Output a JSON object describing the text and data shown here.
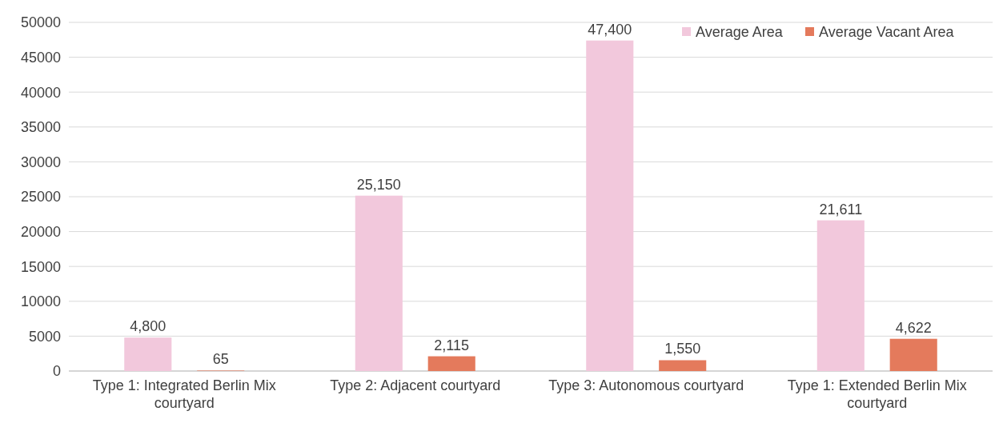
{
  "chart_data": {
    "type": "bar",
    "categories": [
      "Type 1: Integrated Berlin Mix courtyard",
      "Type 2: Adjacent courtyard",
      "Type 3: Autonomous courtyard",
      "Type 1: Extended Berlin Mix courtyard"
    ],
    "series": [
      {
        "name": "Average Area",
        "color": "#f2c8dc",
        "values": [
          4800,
          25150,
          47400,
          21611
        ],
        "value_labels": [
          "4,800",
          "25,150",
          "47,400",
          "21,611"
        ]
      },
      {
        "name": "Average Vacant Area",
        "color": "#e47a5c",
        "values": [
          65,
          2115,
          1550,
          4622
        ],
        "value_labels": [
          "65",
          "2,115",
          "1,550",
          "4,622"
        ]
      }
    ],
    "ylim": [
      0,
      50000
    ],
    "yticks": [
      0,
      5000,
      10000,
      15000,
      20000,
      25000,
      30000,
      35000,
      40000,
      45000,
      50000
    ],
    "grid": "y",
    "legend": "top right"
  }
}
